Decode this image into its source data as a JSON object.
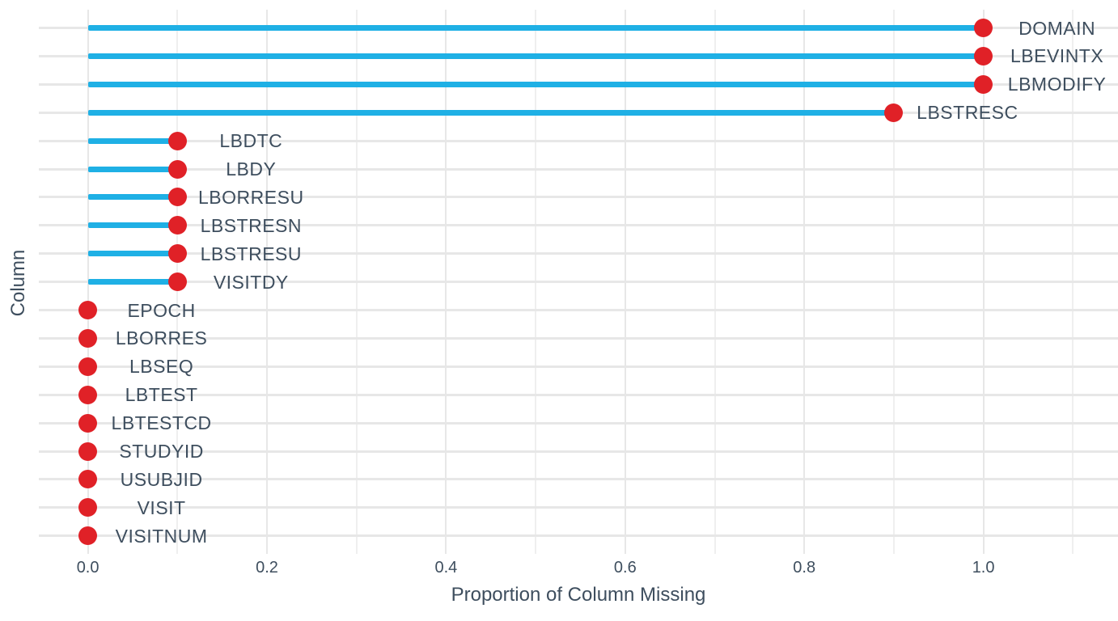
{
  "chart_data": {
    "type": "bar",
    "style": "lollipop",
    "orientation": "horizontal",
    "title": "",
    "xlabel": "Proportion of Column Missing",
    "ylabel": "Column",
    "categories": [
      "DOMAIN",
      "LBEVINTX",
      "LBMODIFY",
      "LBSTRESC",
      "LBDTC",
      "LBDY",
      "LBORRESU",
      "LBSTRESN",
      "LBSTRESU",
      "VISITDY",
      "EPOCH",
      "LBORRES",
      "LBSEQ",
      "LBTEST",
      "LBTESTCD",
      "STUDYID",
      "USUBJID",
      "VISIT",
      "VISITNUM"
    ],
    "values": [
      1.0,
      1.0,
      1.0,
      0.9,
      0.1,
      0.1,
      0.1,
      0.1,
      0.1,
      0.1,
      0,
      0,
      0,
      0,
      0,
      0,
      0,
      0,
      0
    ],
    "xlim": [
      -0.055,
      1.15
    ],
    "xticks": [
      0,
      0.2,
      0.4,
      0.6,
      0.8,
      1.0
    ],
    "xtick_labels": [
      "0.0",
      "0.2",
      "0.4",
      "0.6",
      "0.8",
      "1.0"
    ],
    "grid": true,
    "grid_minor_step": 0.1,
    "legend": "none",
    "colors": {
      "bar": "#1FB0E5",
      "dot": "#E02127",
      "text": "#3E4E5E",
      "grid_major": "#E7E7E7",
      "grid_minor": "#EFEFEF",
      "background": "#FFFFFF"
    }
  }
}
